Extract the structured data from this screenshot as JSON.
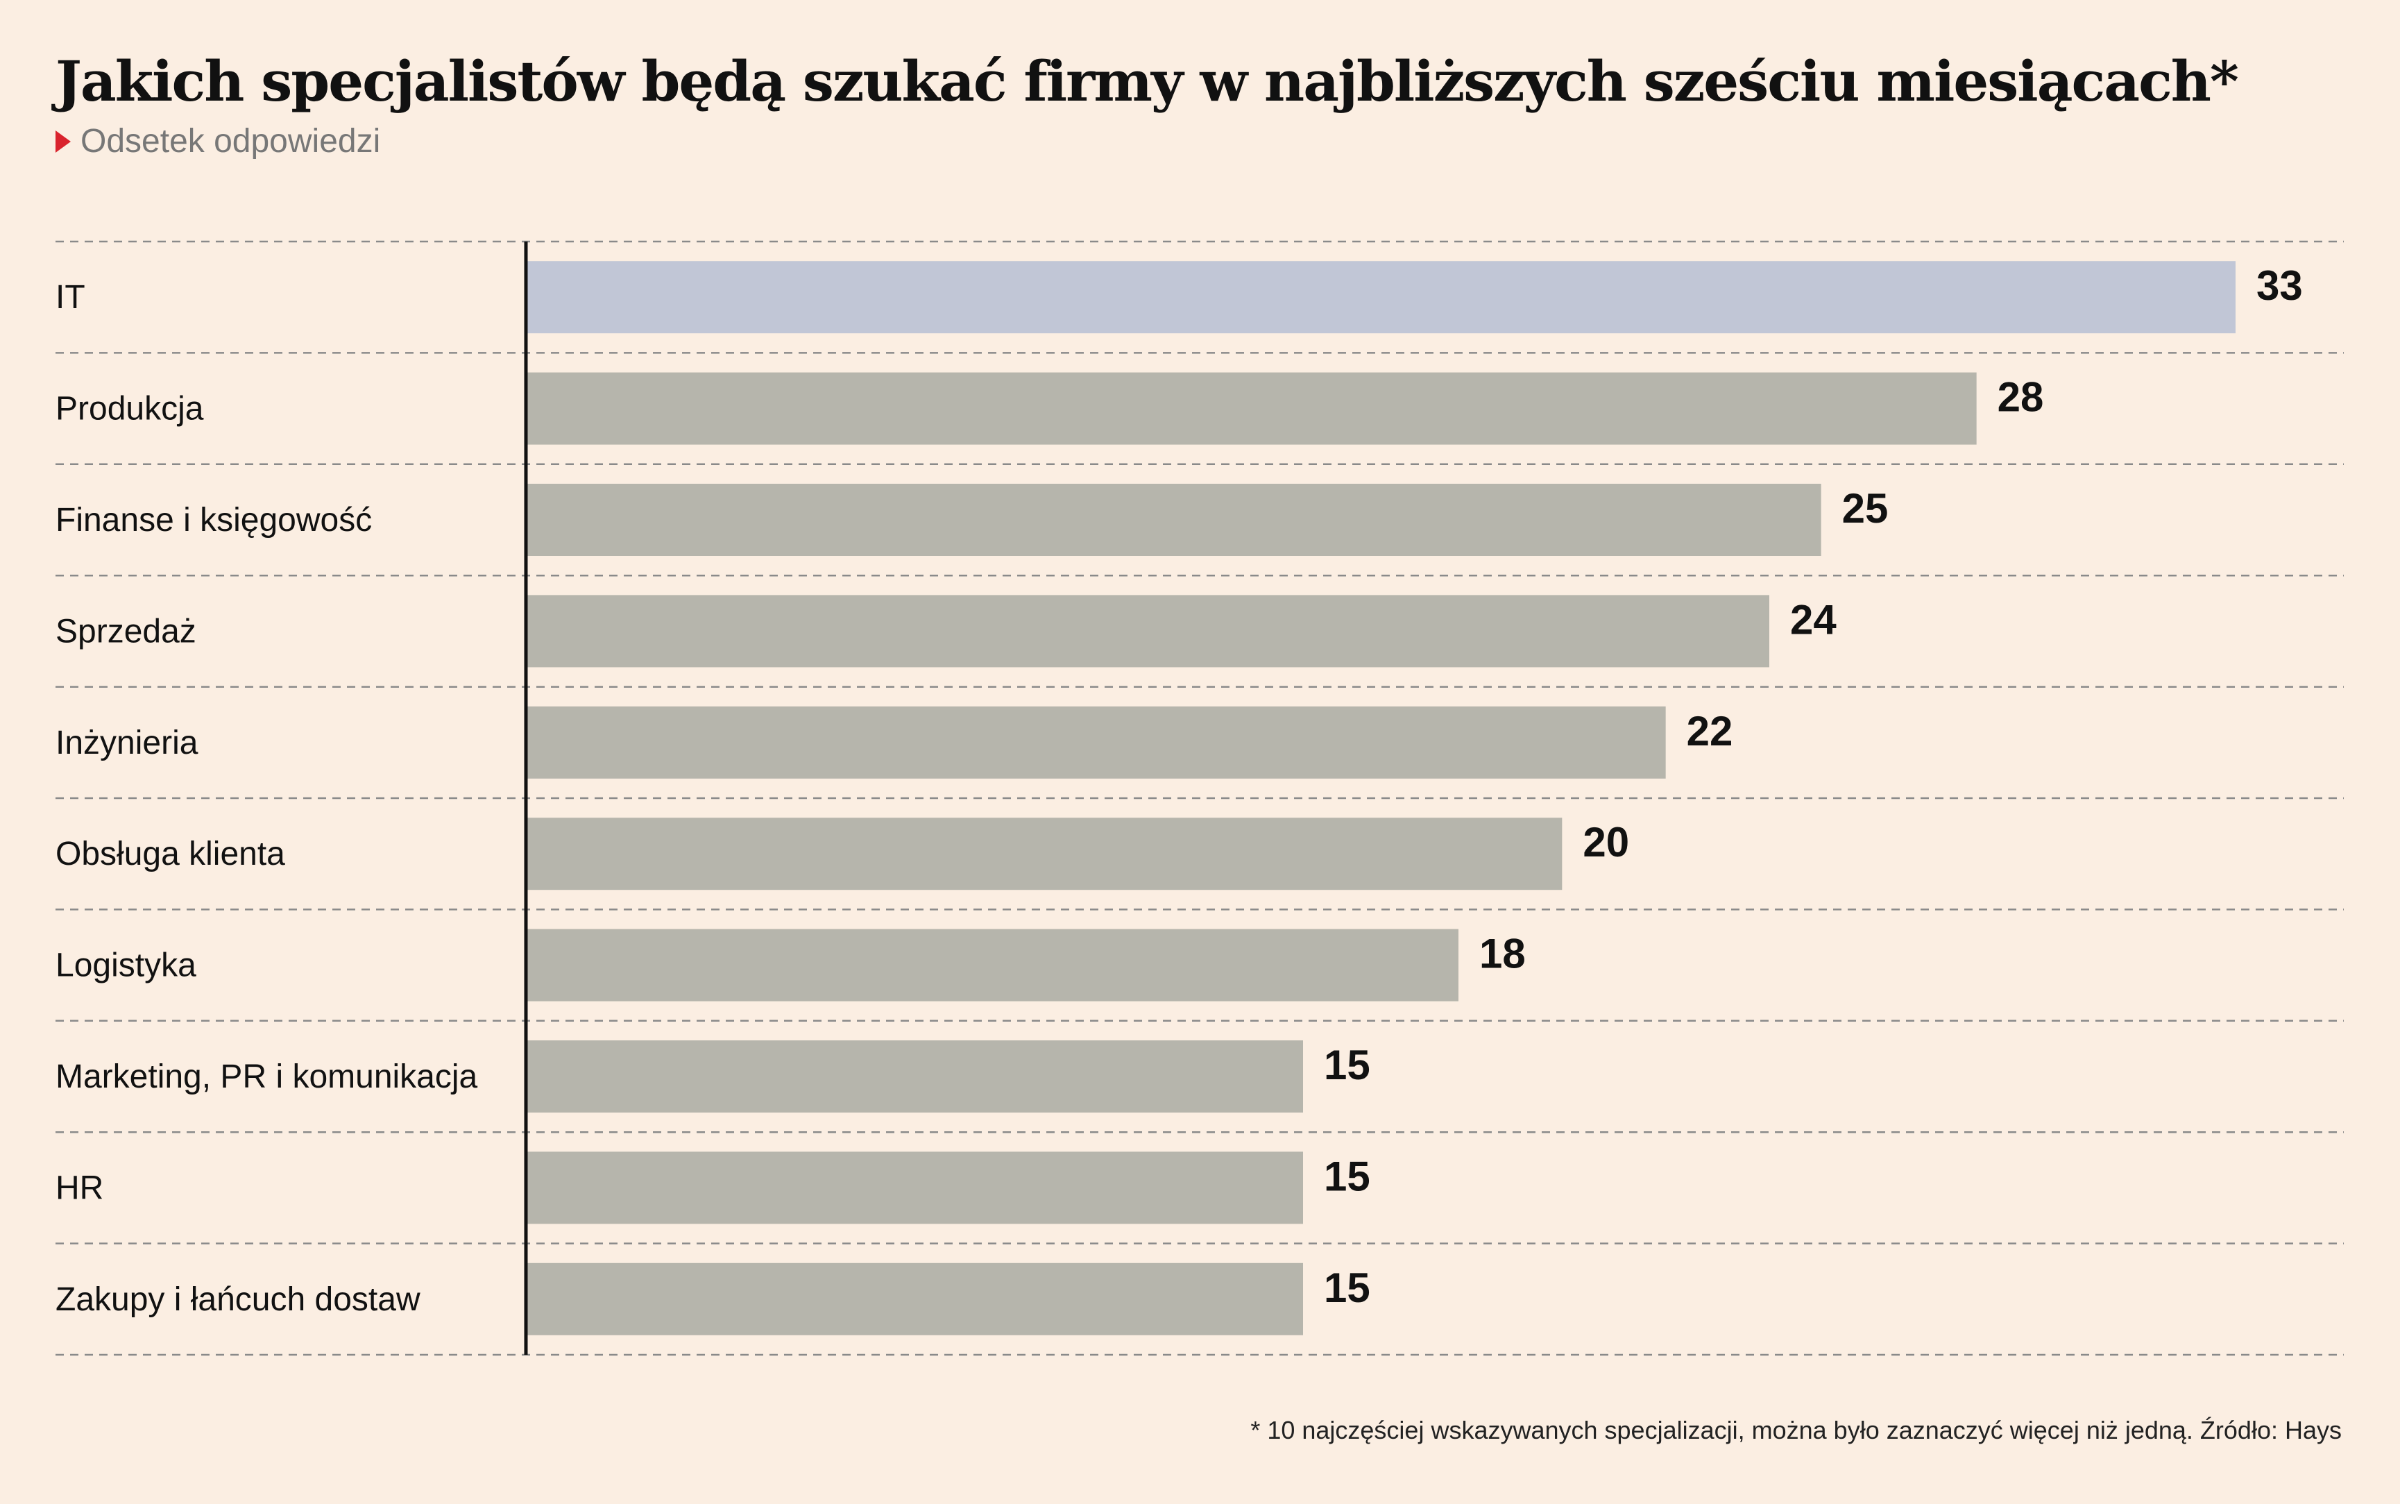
{
  "header": {
    "title": "Jakich specjalistów będą szukać firmy w najbliższych sześciu miesiącach*",
    "subtitle": "Odsetek odpowiedzi"
  },
  "footnote": "* 10 najczęściej wskazywanych specjalizacji, można było zaznaczyć więcej niż jedną. Źródło: Hays",
  "colors": {
    "highlight": "#c1c6d6",
    "bar": "#b6b5ac",
    "background": "#fbeee2",
    "accent": "#d9232d"
  },
  "chart_data": {
    "type": "bar",
    "orientation": "horizontal",
    "categories": [
      "IT",
      "Produkcja",
      "Finanse i księgowość",
      "Sprzedaż",
      "Inżynieria",
      "Obsługa klienta",
      "Logistyka",
      "Marketing, PR i komunikacja",
      "HR",
      "Zakupy i łańcuch dostaw"
    ],
    "values": [
      33,
      28,
      25,
      24,
      22,
      20,
      18,
      15,
      15,
      15
    ],
    "highlight_index": 0,
    "xlim": [
      0,
      33
    ],
    "grid": true
  }
}
